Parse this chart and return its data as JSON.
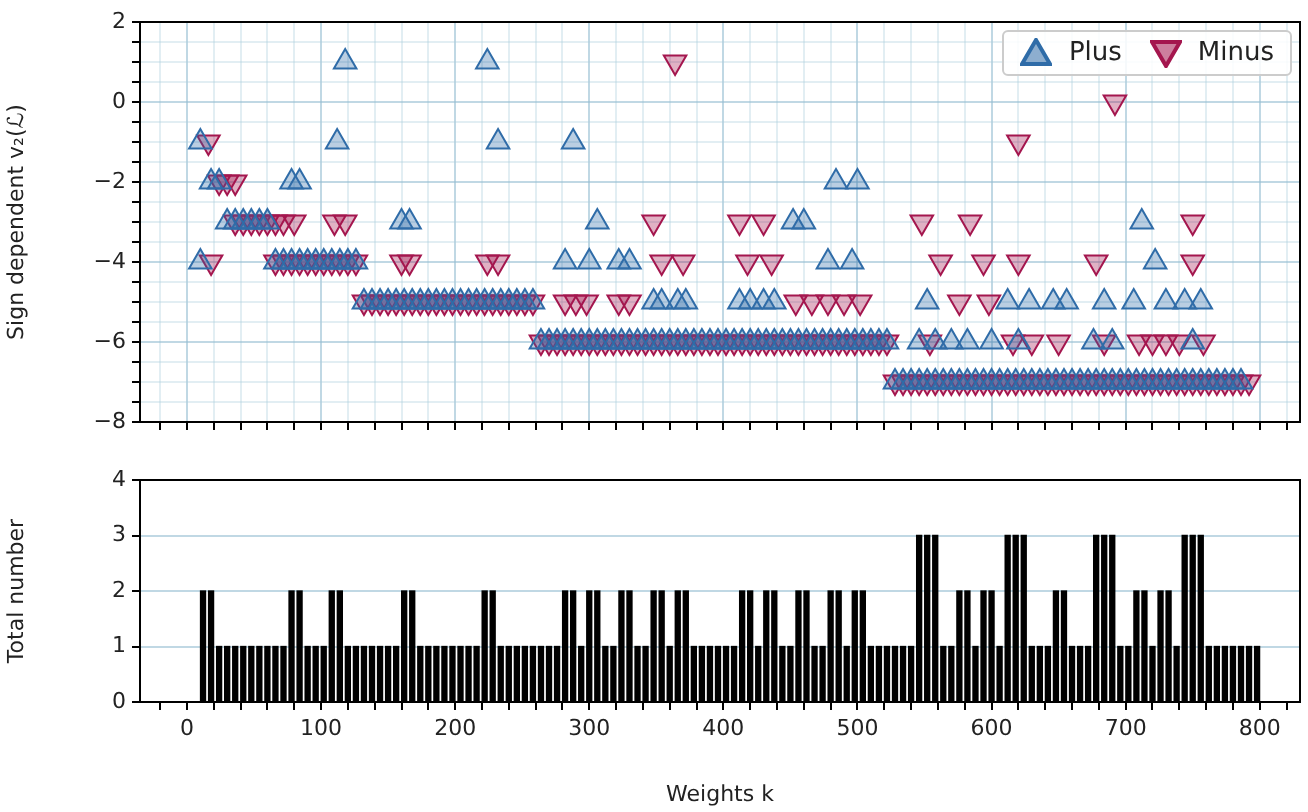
{
  "chart_data": [
    {
      "type": "scatter",
      "ylabel": "Sign dependent v₂(ℒ)",
      "xlim": [
        -35,
        830
      ],
      "ylim": [
        -8,
        2
      ],
      "grid": true,
      "legend": "top right",
      "tick_labels": "y",
      "xticks": [
        {
          "value": -20,
          "label": null
        },
        0,
        {
          "value": 20,
          "label": null
        },
        {
          "value": 40,
          "label": null
        },
        {
          "value": 60,
          "label": null
        },
        {
          "value": 80,
          "label": null
        },
        100,
        {
          "value": 120,
          "label": null
        },
        {
          "value": 140,
          "label": null
        },
        {
          "value": 160,
          "label": null
        },
        {
          "value": 180,
          "label": null
        },
        200,
        {
          "value": 220,
          "label": null
        },
        {
          "value": 240,
          "label": null
        },
        {
          "value": 260,
          "label": null
        },
        {
          "value": 280,
          "label": null
        },
        300,
        {
          "value": 320,
          "label": null
        },
        {
          "value": 340,
          "label": null
        },
        {
          "value": 360,
          "label": null
        },
        {
          "value": 380,
          "label": null
        },
        400,
        {
          "value": 420,
          "label": null
        },
        {
          "value": 440,
          "label": null
        },
        {
          "value": 460,
          "label": null
        },
        {
          "value": 480,
          "label": null
        },
        500,
        {
          "value": 520,
          "label": null
        },
        {
          "value": 540,
          "label": null
        },
        {
          "value": 560,
          "label": null
        },
        {
          "value": 580,
          "label": null
        },
        600,
        {
          "value": 620,
          "label": null
        },
        {
          "value": 640,
          "label": null
        },
        {
          "value": 660,
          "label": null
        },
        {
          "value": 680,
          "label": null
        },
        700,
        {
          "value": 720,
          "label": null
        },
        {
          "value": 740,
          "label": null
        },
        {
          "value": 760,
          "label": null
        },
        {
          "value": 780,
          "label": null
        },
        800,
        {
          "value": 820,
          "label": null
        }
      ],
      "yticks": [
        {
          "value": -8,
          "label": "−8"
        },
        {
          "value": -7.5,
          "label": null
        },
        {
          "value": -7,
          "label": null
        },
        {
          "value": -6.5,
          "label": null
        },
        {
          "value": -6,
          "label": "−6"
        },
        {
          "value": -5.5,
          "label": null
        },
        {
          "value": -5,
          "label": null
        },
        {
          "value": -4.5,
          "label": null
        },
        {
          "value": -4,
          "label": "−4"
        },
        {
          "value": -3.5,
          "label": null
        },
        {
          "value": -3,
          "label": null
        },
        {
          "value": -2.5,
          "label": null
        },
        {
          "value": -2,
          "label": "−2"
        },
        {
          "value": -1.5,
          "label": null
        },
        {
          "value": -1,
          "label": null
        },
        {
          "value": -0.5,
          "label": null
        },
        {
          "value": 0,
          "label": "0"
        },
        {
          "value": 0.5,
          "label": null
        },
        {
          "value": 1,
          "label": null
        },
        {
          "value": 1.5,
          "label": null
        },
        {
          "value": 2,
          "label": "2"
        }
      ],
      "series": [
        {
          "name": "Plus",
          "color": "#2f6ca8",
          "marker": "triangle",
          "x": [
            118,
            224,
            10,
            112,
            232,
            288,
            18,
            24,
            78,
            84,
            484,
            500,
            30,
            36,
            42,
            48,
            54,
            60,
            160,
            166,
            306,
            452,
            460,
            712,
            10,
            282,
            300,
            322,
            330,
            478,
            496,
            722,
            348,
            354,
            366,
            372,
            412,
            420,
            430,
            438,
            552,
            612,
            628,
            646,
            656,
            684,
            706,
            730,
            744,
            756,
            546,
            558,
            570,
            582,
            600,
            620,
            676,
            690,
            750,
            66,
            72,
            78,
            84,
            90,
            96,
            102,
            108,
            114,
            120,
            126,
            132,
            138,
            144,
            150,
            156,
            162,
            168,
            174,
            180,
            186,
            192,
            198,
            204,
            210,
            216,
            222,
            228,
            234,
            240,
            246,
            252,
            258,
            264,
            270,
            276,
            282,
            288,
            294,
            300,
            306,
            312,
            318,
            324,
            330,
            336,
            342,
            348,
            354,
            360,
            366,
            372,
            378,
            384,
            390,
            396,
            402,
            408,
            414,
            420,
            426,
            432,
            438,
            444,
            450,
            456,
            462,
            468,
            474,
            480,
            486,
            492,
            498,
            504,
            510,
            516,
            522,
            528,
            534,
            540,
            546,
            552,
            558,
            564,
            570,
            576,
            582,
            588,
            594,
            600,
            606,
            612,
            618,
            624,
            630,
            636,
            642,
            648,
            654,
            660,
            666,
            672,
            678,
            684,
            690,
            696,
            702,
            708,
            714,
            720,
            726,
            732,
            738,
            744,
            750,
            756,
            762,
            768,
            774,
            780,
            786
          ],
          "values": [
            1,
            1,
            -1,
            -1,
            -1,
            -1,
            -2,
            -2,
            -2,
            -2,
            -2,
            -2,
            -3,
            -3,
            -3,
            -3,
            -3,
            -3,
            -3,
            -3,
            -3,
            -3,
            -3,
            -3,
            -4,
            -4,
            -4,
            -4,
            -4,
            -4,
            -4,
            -4,
            -5,
            -5,
            -5,
            -5,
            -5,
            -5,
            -5,
            -5,
            -5,
            -5,
            -5,
            -5,
            -5,
            -5,
            -5,
            -5,
            -5,
            -5,
            -6,
            -6,
            -6,
            -6,
            -6,
            -6,
            -6,
            -6,
            -6,
            -4,
            -4,
            -4,
            -4,
            -4,
            -4,
            -4,
            -4,
            -4,
            -4,
            -4,
            -5,
            -5,
            -5,
            -5,
            -5,
            -5,
            -5,
            -5,
            -5,
            -5,
            -5,
            -5,
            -5,
            -5,
            -5,
            -5,
            -5,
            -5,
            -5,
            -5,
            -5,
            -5,
            -6,
            -6,
            -6,
            -6,
            -6,
            -6,
            -6,
            -6,
            -6,
            -6,
            -6,
            -6,
            -6,
            -6,
            -6,
            -6,
            -6,
            -6,
            -6,
            -6,
            -6,
            -6,
            -6,
            -6,
            -6,
            -6,
            -6,
            -6,
            -6,
            -6,
            -6,
            -6,
            -6,
            -6,
            -6,
            -6,
            -6,
            -6,
            -6,
            -6,
            -6,
            -6,
            -6,
            -6,
            -7,
            -7,
            -7,
            -7,
            -7,
            -7,
            -7,
            -7,
            -7,
            -7,
            -7,
            -7,
            -7,
            -7,
            -7,
            -7,
            -7,
            -7,
            -7,
            -7,
            -7,
            -7,
            -7,
            -7,
            -7,
            -7,
            -7,
            -7,
            -7,
            -7,
            -7,
            -7,
            -7,
            -7,
            -7,
            -7,
            -7,
            -7,
            -7,
            -7,
            -7,
            -7,
            -7,
            -7
          ]
        },
        {
          "name": "Minus",
          "color": "#a4164e",
          "marker": "triangle-down",
          "x": [
            364,
            692,
            16,
            620,
            24,
            30,
            36,
            36,
            42,
            48,
            54,
            60,
            66,
            72,
            80,
            110,
            118,
            348,
            412,
            430,
            548,
            584,
            750,
            18,
            160,
            166,
            224,
            232,
            354,
            370,
            418,
            436,
            562,
            594,
            620,
            678,
            750,
            282,
            290,
            298,
            322,
            330,
            454,
            466,
            478,
            490,
            502,
            576,
            598,
            554,
            616,
            630,
            650,
            684,
            710,
            720,
            730,
            740,
            758,
            66,
            72,
            78,
            84,
            90,
            96,
            102,
            108,
            114,
            120,
            126,
            132,
            138,
            144,
            150,
            156,
            162,
            168,
            174,
            180,
            186,
            192,
            198,
            204,
            210,
            216,
            222,
            228,
            234,
            240,
            246,
            252,
            258,
            264,
            270,
            276,
            282,
            288,
            294,
            300,
            306,
            312,
            318,
            324,
            330,
            336,
            342,
            348,
            354,
            360,
            366,
            372,
            378,
            384,
            390,
            396,
            402,
            408,
            414,
            420,
            426,
            432,
            438,
            444,
            450,
            456,
            462,
            468,
            474,
            480,
            486,
            492,
            498,
            504,
            510,
            516,
            522,
            528,
            534,
            540,
            546,
            552,
            558,
            564,
            570,
            576,
            582,
            588,
            594,
            600,
            606,
            612,
            618,
            624,
            630,
            636,
            642,
            648,
            654,
            660,
            666,
            672,
            678,
            684,
            690,
            696,
            702,
            708,
            714,
            720,
            726,
            732,
            738,
            744,
            750,
            756,
            762,
            768,
            774,
            780,
            786,
            792
          ],
          "values": [
            1,
            0,
            -1,
            -1,
            -2,
            -2,
            -2,
            -3,
            -3,
            -3,
            -3,
            -3,
            -3,
            -3,
            -3,
            -3,
            -3,
            -3,
            -3,
            -3,
            -3,
            -3,
            -3,
            -4,
            -4,
            -4,
            -4,
            -4,
            -4,
            -4,
            -4,
            -4,
            -4,
            -4,
            -4,
            -4,
            -4,
            -5,
            -5,
            -5,
            -5,
            -5,
            -5,
            -5,
            -5,
            -5,
            -5,
            -5,
            -5,
            -6,
            -6,
            -6,
            -6,
            -6,
            -6,
            -6,
            -6,
            -6,
            -6,
            -4,
            -4,
            -4,
            -4,
            -4,
            -4,
            -4,
            -4,
            -4,
            -4,
            -4,
            -5,
            -5,
            -5,
            -5,
            -5,
            -5,
            -5,
            -5,
            -5,
            -5,
            -5,
            -5,
            -5,
            -5,
            -5,
            -5,
            -5,
            -5,
            -5,
            -5,
            -5,
            -5,
            -6,
            -6,
            -6,
            -6,
            -6,
            -6,
            -6,
            -6,
            -6,
            -6,
            -6,
            -6,
            -6,
            -6,
            -6,
            -6,
            -6,
            -6,
            -6,
            -6,
            -6,
            -6,
            -6,
            -6,
            -6,
            -6,
            -6,
            -6,
            -6,
            -6,
            -6,
            -6,
            -6,
            -6,
            -6,
            -6,
            -6,
            -6,
            -6,
            -6,
            -6,
            -6,
            -6,
            -6,
            -7,
            -7,
            -7,
            -7,
            -7,
            -7,
            -7,
            -7,
            -7,
            -7,
            -7,
            -7,
            -7,
            -7,
            -7,
            -7,
            -7,
            -7,
            -7,
            -7,
            -7,
            -7,
            -7,
            -7,
            -7,
            -7,
            -7,
            -7,
            -7,
            -7,
            -7,
            -7,
            -7,
            -7,
            -7,
            -7,
            -7,
            -7,
            -7,
            -7,
            -7,
            -7,
            -7,
            -7,
            -7
          ]
        }
      ]
    },
    {
      "type": "bar",
      "xlabel": "Weights k",
      "ylabel": "Total number",
      "xlim": [
        -35,
        830
      ],
      "ylim": [
        0,
        4
      ],
      "grid": "y",
      "yticks": [
        0,
        1,
        2,
        3,
        4
      ],
      "xticks": [
        {
          "value": -20,
          "label": null
        },
        {
          "value": 0,
          "label": "0"
        },
        {
          "value": 20,
          "label": null
        },
        {
          "value": 40,
          "label": null
        },
        {
          "value": 60,
          "label": null
        },
        {
          "value": 80,
          "label": null
        },
        {
          "value": 100,
          "label": "100"
        },
        {
          "value": 120,
          "label": null
        },
        {
          "value": 140,
          "label": null
        },
        {
          "value": 160,
          "label": null
        },
        {
          "value": 180,
          "label": null
        },
        {
          "value": 200,
          "label": "200"
        },
        {
          "value": 220,
          "label": null
        },
        {
          "value": 240,
          "label": null
        },
        {
          "value": 260,
          "label": null
        },
        {
          "value": 280,
          "label": null
        },
        {
          "value": 300,
          "label": "300"
        },
        {
          "value": 320,
          "label": null
        },
        {
          "value": 340,
          "label": null
        },
        {
          "value": 360,
          "label": null
        },
        {
          "value": 380,
          "label": null
        },
        {
          "value": 400,
          "label": "400"
        },
        {
          "value": 420,
          "label": null
        },
        {
          "value": 440,
          "label": null
        },
        {
          "value": 460,
          "label": null
        },
        {
          "value": 480,
          "label": null
        },
        {
          "value": 500,
          "label": "500"
        },
        {
          "value": 520,
          "label": null
        },
        {
          "value": 540,
          "label": null
        },
        {
          "value": 560,
          "label": null
        },
        {
          "value": 580,
          "label": null
        },
        {
          "value": 600,
          "label": "600"
        },
        {
          "value": 620,
          "label": null
        },
        {
          "value": 640,
          "label": null
        },
        {
          "value": 660,
          "label": null
        },
        {
          "value": 680,
          "label": null
        },
        {
          "value": 700,
          "label": "700"
        },
        {
          "value": 720,
          "label": null
        },
        {
          "value": 740,
          "label": null
        },
        {
          "value": 760,
          "label": null
        },
        {
          "value": 780,
          "label": null
        },
        {
          "value": 800,
          "label": "800"
        },
        {
          "value": 820,
          "label": null
        }
      ],
      "series": [
        {
          "color": "#000000",
          "x": [
            12,
            18,
            24,
            30,
            36,
            42,
            48,
            54,
            60,
            66,
            72,
            78,
            84,
            90,
            96,
            102,
            108,
            114,
            120,
            126,
            132,
            138,
            144,
            150,
            156,
            162,
            168,
            174,
            180,
            186,
            192,
            198,
            204,
            210,
            216,
            222,
            228,
            234,
            240,
            246,
            252,
            258,
            264,
            270,
            276,
            282,
            288,
            294,
            300,
            306,
            312,
            318,
            324,
            330,
            336,
            342,
            348,
            354,
            360,
            366,
            372,
            378,
            384,
            390,
            396,
            402,
            408,
            414,
            420,
            426,
            432,
            438,
            444,
            450,
            456,
            462,
            468,
            474,
            480,
            486,
            492,
            498,
            504,
            510,
            516,
            522,
            528,
            534,
            540,
            546,
            552,
            558,
            564,
            570,
            576,
            582,
            588,
            594,
            600,
            606,
            612,
            618,
            624,
            630,
            636,
            642,
            648,
            654,
            660,
            666,
            672,
            678,
            684,
            690,
            696,
            702,
            708,
            714,
            720,
            726,
            732,
            738,
            744,
            750,
            756,
            762,
            768,
            774,
            780,
            786,
            792,
            798
          ],
          "values": [
            2,
            2,
            1,
            1,
            1,
            1,
            1,
            1,
            1,
            1,
            1,
            2,
            2,
            1,
            1,
            1,
            2,
            2,
            1,
            1,
            1,
            1,
            1,
            1,
            1,
            2,
            2,
            1,
            1,
            1,
            1,
            1,
            1,
            1,
            1,
            2,
            2,
            1,
            1,
            1,
            1,
            1,
            1,
            1,
            1,
            2,
            2,
            1,
            2,
            2,
            1,
            1,
            2,
            2,
            1,
            1,
            2,
            2,
            1,
            2,
            2,
            1,
            1,
            1,
            1,
            1,
            1,
            2,
            2,
            1,
            2,
            2,
            1,
            1,
            2,
            2,
            1,
            1,
            2,
            2,
            1,
            2,
            2,
            1,
            1,
            1,
            1,
            1,
            1,
            3,
            3,
            3,
            1,
            1,
            2,
            2,
            1,
            2,
            2,
            1,
            3,
            3,
            3,
            1,
            1,
            1,
            2,
            2,
            1,
            1,
            1,
            3,
            3,
            3,
            1,
            1,
            2,
            2,
            1,
            2,
            2,
            1,
            3,
            3,
            3,
            1,
            1,
            1,
            1,
            1,
            1,
            1
          ]
        }
      ]
    }
  ]
}
